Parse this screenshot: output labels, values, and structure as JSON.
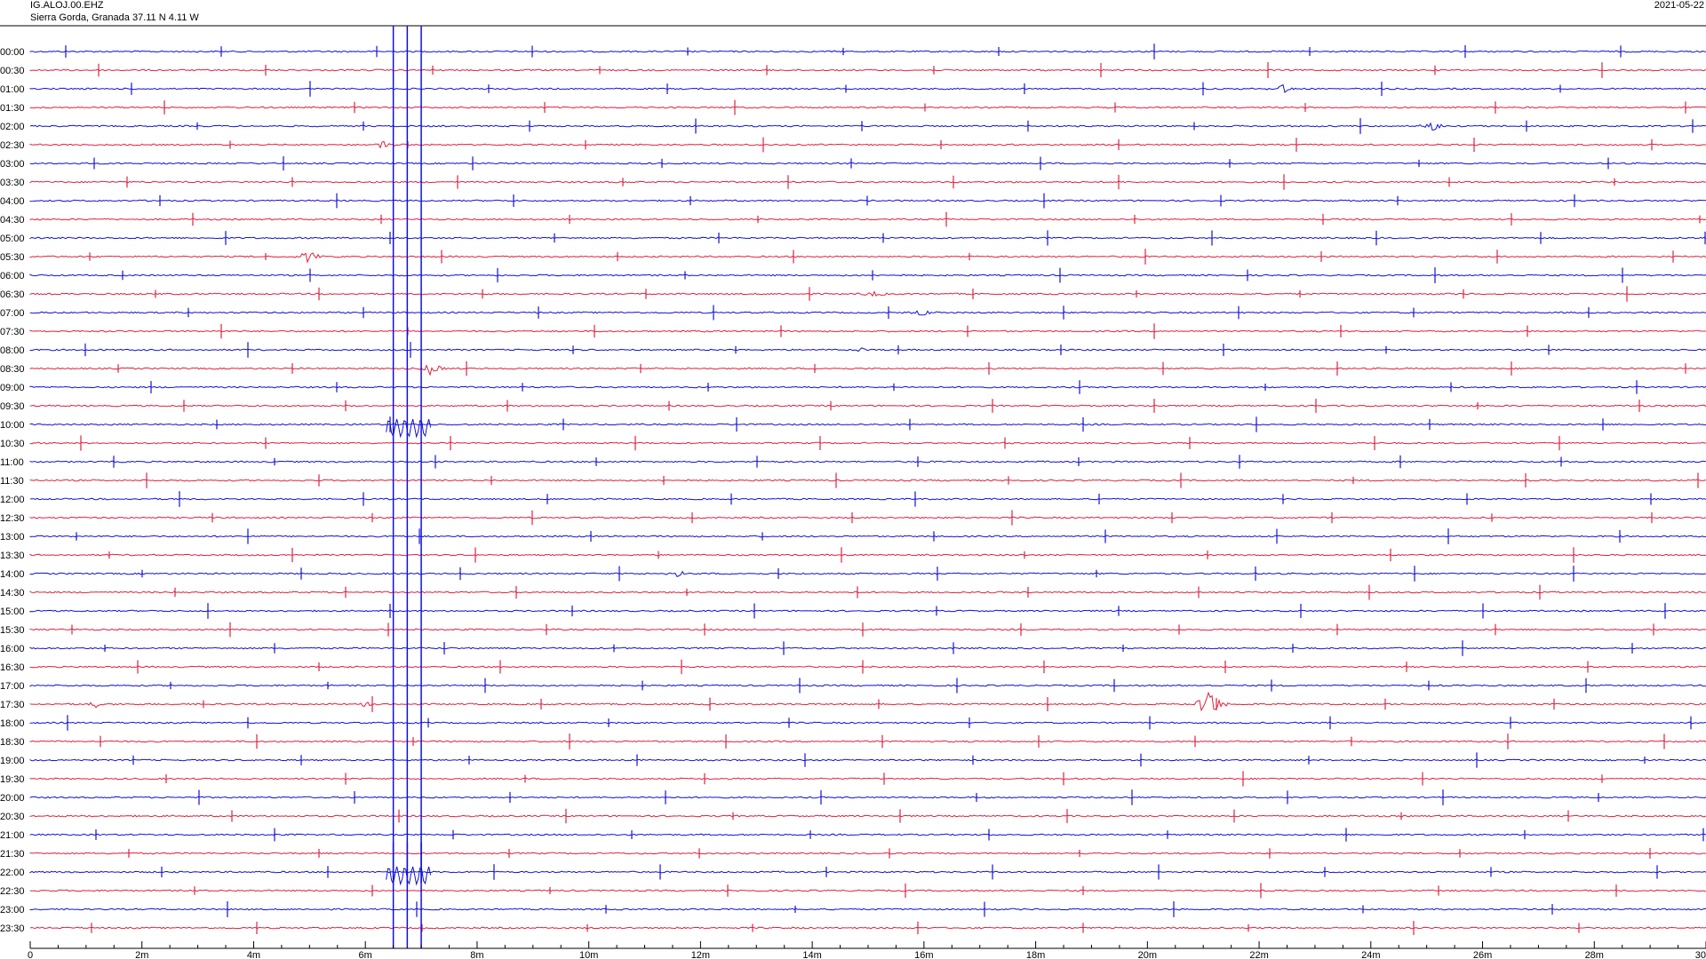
{
  "header": {
    "station_code": "IG.ALOJ.00.EHZ",
    "location": "Sierra Gorda, Granada  37.11 N 4.11 W",
    "date": "2021-05-22"
  },
  "colors": {
    "trace_a": "#1010d8",
    "trace_b": "#e0203c",
    "axis": "#000000"
  },
  "chart_data": {
    "type": "line",
    "subtype": "helicorder",
    "row_labels": [
      "00:00",
      "00:30",
      "01:00",
      "01:30",
      "02:00",
      "02:30",
      "03:00",
      "03:30",
      "04:00",
      "04:30",
      "05:00",
      "05:30",
      "06:00",
      "06:30",
      "07:00",
      "07:30",
      "08:00",
      "08:30",
      "09:00",
      "09:30",
      "10:00",
      "10:30",
      "11:00",
      "11:30",
      "12:00",
      "12:30",
      "13:00",
      "13:30",
      "14:00",
      "14:30",
      "15:00",
      "15:30",
      "16:00",
      "16:30",
      "17:00",
      "17:30",
      "18:00",
      "18:30",
      "19:00",
      "19:30",
      "20:00",
      "20:30",
      "21:00",
      "21:30",
      "22:00",
      "22:30",
      "23:00",
      "23:30"
    ],
    "x_ticks": [
      "0",
      "2m",
      "4m",
      "6m",
      "8m",
      "10m",
      "12m",
      "14m",
      "16m",
      "18m",
      "20m",
      "22m",
      "24m",
      "26m",
      "28m",
      "30"
    ],
    "xlim": [
      0,
      30
    ],
    "x_unit": "minutes",
    "events": [
      {
        "row": "01:00",
        "minute": 22.4,
        "amplitude": 0.55
      },
      {
        "row": "02:00",
        "minute": 25.1,
        "amplitude": 0.6
      },
      {
        "row": "02:30",
        "minute": 6.3,
        "amplitude": 0.35
      },
      {
        "row": "05:30",
        "minute": 5.0,
        "amplitude": 0.7
      },
      {
        "row": "06:30",
        "minute": 15.1,
        "amplitude": 0.3
      },
      {
        "row": "07:00",
        "minute": 16.0,
        "amplitude": 0.35
      },
      {
        "row": "08:00",
        "minute": 14.9,
        "amplitude": 0.2
      },
      {
        "row": "08:30",
        "minute": 7.2,
        "amplitude": 0.75
      },
      {
        "row": "14:00",
        "minute": 11.6,
        "amplitude": 0.3
      },
      {
        "row": "17:30",
        "minute": 21.1,
        "amplitude": 2.0
      },
      {
        "row": "17:30",
        "minute": 1.2,
        "amplitude": 0.4
      },
      {
        "row": "17:30",
        "minute": 6.0,
        "amplitude": 0.3
      }
    ],
    "calibration_pulses": [
      {
        "start_row": "04:00",
        "end_row": "10:00",
        "minutes": [
          6.5,
          6.75,
          7.0
        ]
      },
      {
        "start_row": "21:30",
        "end_row": "22:00",
        "minutes": [
          6.5,
          6.75,
          7.0
        ]
      }
    ],
    "grid": false
  }
}
